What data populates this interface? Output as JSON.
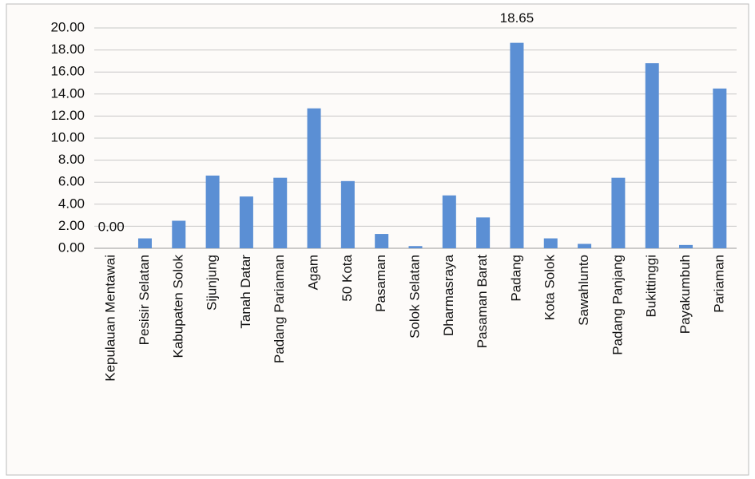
{
  "chart_data": {
    "type": "bar",
    "categories": [
      "Kepulauan Mentawai",
      "Pesisir Selatan",
      "Kabupaten Solok",
      "Sijunjung",
      "Tanah Datar",
      "Padang Pariaman",
      "Agam",
      "50 Kota",
      "Pasaman",
      "Solok Selatan",
      "Dharmasraya",
      "Pasaman Barat",
      "Padang",
      "Kota Solok",
      "Sawahlunto",
      "Padang Panjang",
      "Bukittinggi",
      "Payakumbuh",
      "Pariaman"
    ],
    "values": [
      0,
      0.9,
      2.5,
      6.6,
      4.7,
      6.4,
      12.7,
      6.1,
      1.3,
      0.2,
      4.8,
      2.8,
      18.65,
      0.9,
      0.4,
      6.4,
      16.8,
      0.3,
      14.5
    ],
    "value_labels": [
      "0.00",
      null,
      null,
      null,
      null,
      null,
      null,
      null,
      null,
      null,
      null,
      null,
      "18.65",
      null,
      null,
      null,
      null,
      null,
      null
    ],
    "color": "#5b8fd4",
    "ylim": [
      0,
      20
    ],
    "yticks": [
      {
        "value": 0,
        "label": "0.00"
      },
      {
        "value": 2,
        "label": "2.00"
      },
      {
        "value": 4,
        "label": "4.00"
      },
      {
        "value": 6,
        "label": "6.00"
      },
      {
        "value": 8,
        "label": "8.00"
      },
      {
        "value": 10,
        "label": "10.00"
      },
      {
        "value": 12,
        "label": "12.00"
      },
      {
        "value": 14,
        "label": "14.00"
      },
      {
        "value": 16,
        "label": "16.00"
      },
      {
        "value": 18,
        "label": "18.00"
      },
      {
        "value": 20,
        "label": "20.00"
      }
    ],
    "grid": true
  }
}
